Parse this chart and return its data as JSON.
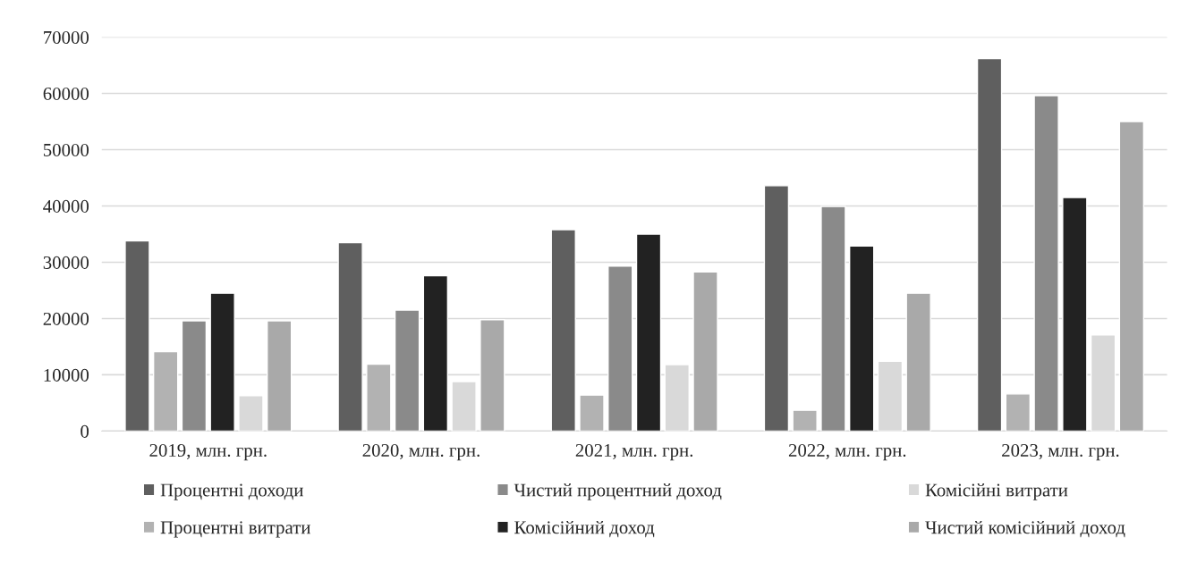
{
  "chart_data": {
    "type": "bar",
    "categories": [
      "2019, млн. грн.",
      "2020, млн. грн.",
      "2021, млн. грн.",
      "2022, млн. грн.",
      "2023, млн. грн."
    ],
    "series": [
      {
        "name": "Процентні доходи",
        "color": "#5f5f5f",
        "values": [
          33800,
          33500,
          35800,
          43600,
          66200
        ]
      },
      {
        "name": "Процентні витрати",
        "color": "#b2b2b2",
        "values": [
          14100,
          11900,
          6400,
          3700,
          6600
        ]
      },
      {
        "name": "Чистий процентний доход",
        "color": "#8a8a8a",
        "values": [
          19600,
          21500,
          29300,
          39900,
          59600
        ]
      },
      {
        "name": "Комісійний доход",
        "color": "#222222",
        "values": [
          24500,
          27600,
          35000,
          32900,
          41500
        ]
      },
      {
        "name": "Комісійні витрати",
        "color": "#d9d9d9",
        "values": [
          6300,
          8800,
          11800,
          12400,
          17100
        ]
      },
      {
        "name": "Чистий комісійний доход",
        "color": "#a9a9a9",
        "values": [
          19600,
          19800,
          28300,
          24500,
          55000
        ]
      }
    ],
    "ylim": [
      0,
      70000
    ],
    "yticks": [
      0,
      10000,
      20000,
      30000,
      40000,
      50000,
      60000,
      70000
    ],
    "grid": "y",
    "legend": "bottom"
  }
}
